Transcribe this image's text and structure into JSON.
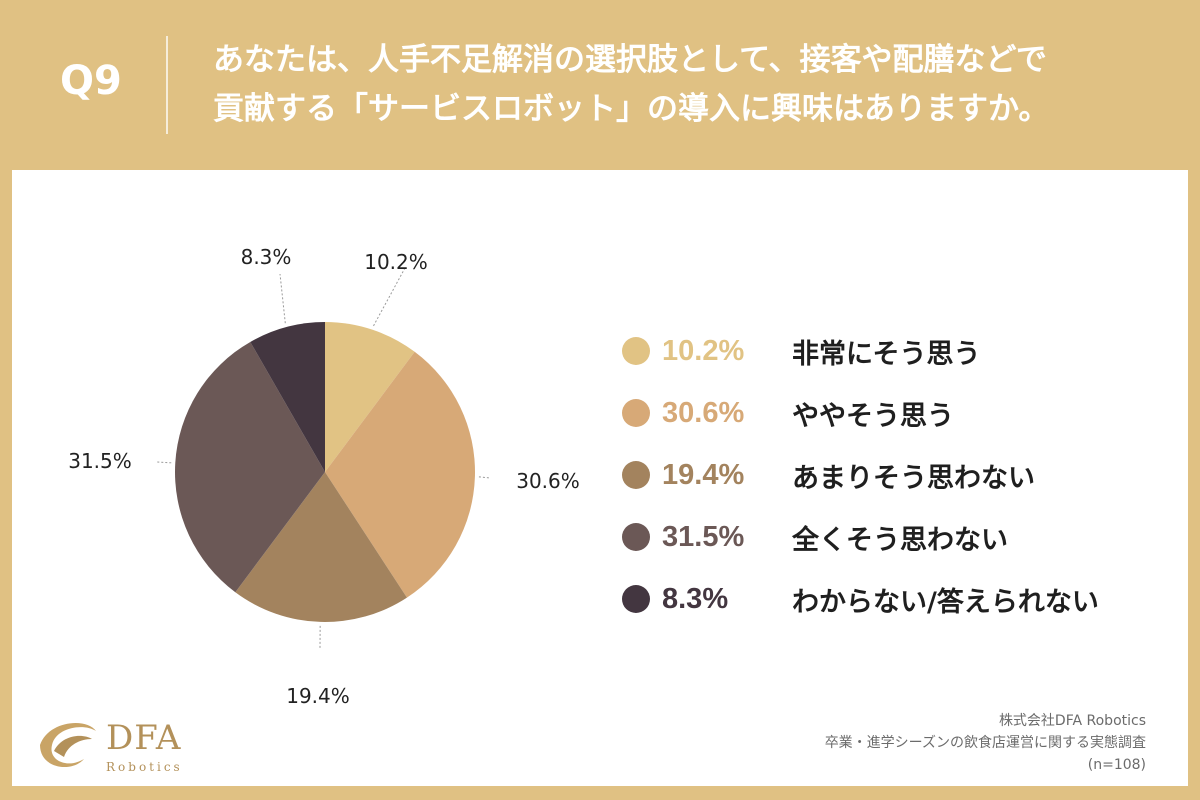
{
  "header": {
    "qnum": "Q9",
    "question_line1": "あなたは、人手不足解消の選択肢として、接客や配膳などで",
    "question_line2": "貢献する「サービスロボット」の導入に興味はありますか。"
  },
  "chart_data": {
    "type": "pie",
    "title": "あなたは、人手不足解消の選択肢として、接客や配膳などで貢献する「サービスロボット」の導入に興味はありますか。",
    "categories": [
      "非常にそう思う",
      "ややそう思う",
      "あまりそう思わない",
      "全くそう思わない",
      "わからない/答えられない"
    ],
    "values": [
      10.2,
      30.6,
      19.4,
      31.5,
      8.3
    ],
    "value_labels": [
      "10.2%",
      "30.6%",
      "19.4%",
      "31.5%",
      "8.3%"
    ],
    "colors": [
      "#e1c384",
      "#d7a977",
      "#a3835e",
      "#6b5856",
      "#433640"
    ],
    "legend_position": "right"
  },
  "footer": {
    "company": "株式会社DFA Robotics",
    "survey": "卒業・進学シーズンの飲食店運営に関する実態調査",
    "sample": "(n=108)"
  },
  "logo": {
    "name": "DFA",
    "sub": "Robotics"
  }
}
